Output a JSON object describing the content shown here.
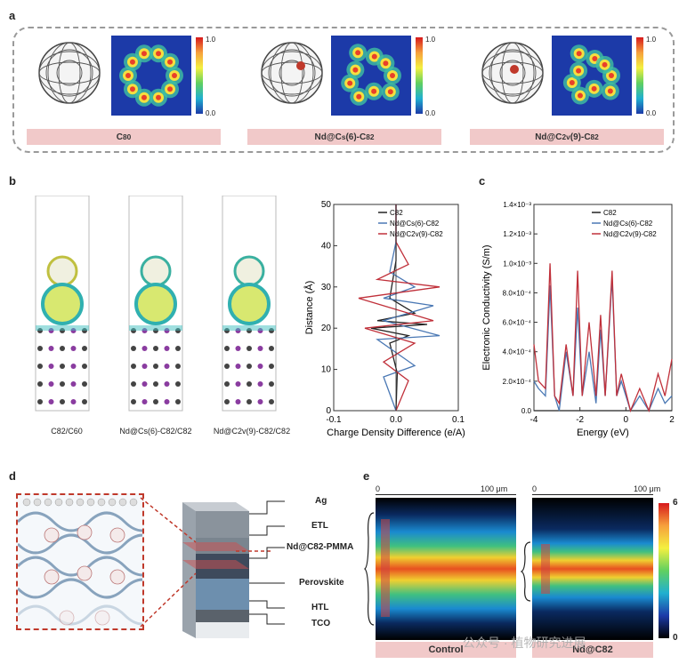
{
  "panels": {
    "a": "a",
    "b": "b",
    "c": "c",
    "d": "d",
    "e": "e"
  },
  "panel_a": {
    "items": [
      {
        "label": "C",
        "sub": "80",
        "suffix": ""
      },
      {
        "label": "Nd@C",
        "sub": "s",
        "mid": "(6)-C",
        "sub2": "82"
      },
      {
        "label": "Nd@C",
        "sub": "2v",
        "mid": "(9)-C",
        "sub2": "82"
      }
    ],
    "colorbar_max": "1.0",
    "colorbar_min": "0.0"
  },
  "panel_b": {
    "captions": [
      "C82/C60",
      "Nd@Cs(6)-C82/C82",
      "Nd@C2v(9)-C82/C82"
    ]
  },
  "chart_data": [
    {
      "type": "line",
      "xlabel": "Charge Density Difference (e/A)",
      "ylabel": "Distance (Å)",
      "xlim": [
        -0.1,
        0.1
      ],
      "ylim": [
        0,
        55
      ],
      "xticks": [
        "-0.1",
        "0.0",
        "0.1"
      ],
      "yticks": [
        "0",
        "10",
        "20",
        "30",
        "40",
        "50"
      ],
      "legend": [
        "C82",
        "Nd@Cs(6)-C82",
        "Nd@C2v(9)-C82"
      ],
      "legend_position": "top-right",
      "series": [
        {
          "name": "C82",
          "color": "#222222",
          "x": [
            0.0,
            0.002,
            -0.01,
            0.02,
            -0.04,
            0.05,
            -0.03,
            0.03,
            -0.01,
            0.0,
            0.0
          ],
          "y": [
            0,
            10,
            18,
            20,
            22,
            23,
            24,
            26,
            30,
            40,
            55
          ]
        },
        {
          "name": "Nd@Cs(6)-C82",
          "color": "#4a78b4",
          "x": [
            0.0,
            -0.02,
            0.03,
            -0.03,
            0.07,
            -0.02,
            0.06,
            -0.02,
            0.03,
            -0.01,
            0.0,
            0.0
          ],
          "y": [
            0,
            9,
            12,
            19,
            20,
            24,
            28,
            30,
            33,
            37,
            45,
            55
          ]
        },
        {
          "name": "Nd@C2v(9)-C82",
          "color": "#c0303a",
          "x": [
            0.0,
            0.02,
            -0.02,
            0.03,
            -0.05,
            0.06,
            -0.06,
            0.07,
            -0.03,
            0.02,
            0.0,
            0.0
          ],
          "y": [
            0,
            8,
            13,
            18,
            22,
            24,
            30,
            33,
            35,
            39,
            45,
            55
          ]
        }
      ]
    },
    {
      "type": "line",
      "xlabel": "Energy (eV)",
      "ylabel": "Electronic Conductivity (S/m)",
      "xlim": [
        -4,
        2
      ],
      "ylim": [
        0,
        0.0014
      ],
      "xticks": [
        "-4",
        "-2",
        "0",
        "2"
      ],
      "yticks": [
        "0.0",
        "2.0×10⁻⁴",
        "4.0×10⁻⁴",
        "6.0×10⁻⁴",
        "8.0×10⁻⁴",
        "1.0×10⁻³",
        "1.2×10⁻³",
        "1.4×10⁻³"
      ],
      "legend": [
        "C82",
        "Nd@Cs(6)-C82",
        "Nd@C2v(9)-C82"
      ],
      "legend_position": "top-right",
      "series": [
        {
          "name": "C82",
          "color": "#222222",
          "x": [
            -4,
            2
          ],
          "y": [
            0,
            0
          ]
        },
        {
          "name": "Nd@Cs(6)-C82",
          "color": "#4a78b4",
          "x": [
            -4,
            -3.8,
            -3.5,
            -3.3,
            -3.1,
            -2.9,
            -2.6,
            -2.3,
            -2.1,
            -1.9,
            -1.6,
            -1.3,
            -1.1,
            -0.9,
            -0.6,
            -0.4,
            -0.2,
            0.2,
            0.6,
            1.0,
            1.4,
            1.7,
            2.0
          ],
          "y": [
            0.0002,
            0.00015,
            0.0001,
            0.00085,
            0.0001,
            0.0,
            0.0004,
            0.0001,
            0.0007,
            0.0001,
            0.0004,
            5e-05,
            0.00055,
            0.0001,
            0.0009,
            0.0001,
            0.0002,
            0.0,
            0.0001,
            0.0,
            0.00015,
            5e-05,
            0.0001
          ]
        },
        {
          "name": "Nd@C2v(9)-C82",
          "color": "#c0303a",
          "x": [
            -4,
            -3.8,
            -3.5,
            -3.3,
            -3.1,
            -2.9,
            -2.6,
            -2.3,
            -2.1,
            -1.9,
            -1.6,
            -1.3,
            -1.1,
            -0.9,
            -0.6,
            -0.4,
            -0.2,
            0.2,
            0.6,
            1.0,
            1.4,
            1.7,
            2.0
          ],
          "y": [
            0.00045,
            0.0002,
            0.00015,
            0.001,
            0.0001,
            5e-05,
            0.00045,
            0.0001,
            0.00095,
            0.0001,
            0.0006,
            0.0001,
            0.00065,
            0.0001,
            0.00095,
            0.0001,
            0.00025,
            0.0,
            0.00015,
            0.0,
            0.00025,
            0.0001,
            0.00035
          ]
        }
      ]
    }
  ],
  "panel_d": {
    "layers": [
      "Ag",
      "ETL",
      "Nd@C82-PMMA",
      "Perovskite",
      "HTL",
      "TCO"
    ]
  },
  "panel_e": {
    "scale_left": "0",
    "scale_right": "100 μm",
    "colorbar_max": "6",
    "colorbar_min": "0",
    "labels": [
      "Control",
      "Nd@C82"
    ],
    "watermark": "公众号 · 植物研究进展"
  }
}
